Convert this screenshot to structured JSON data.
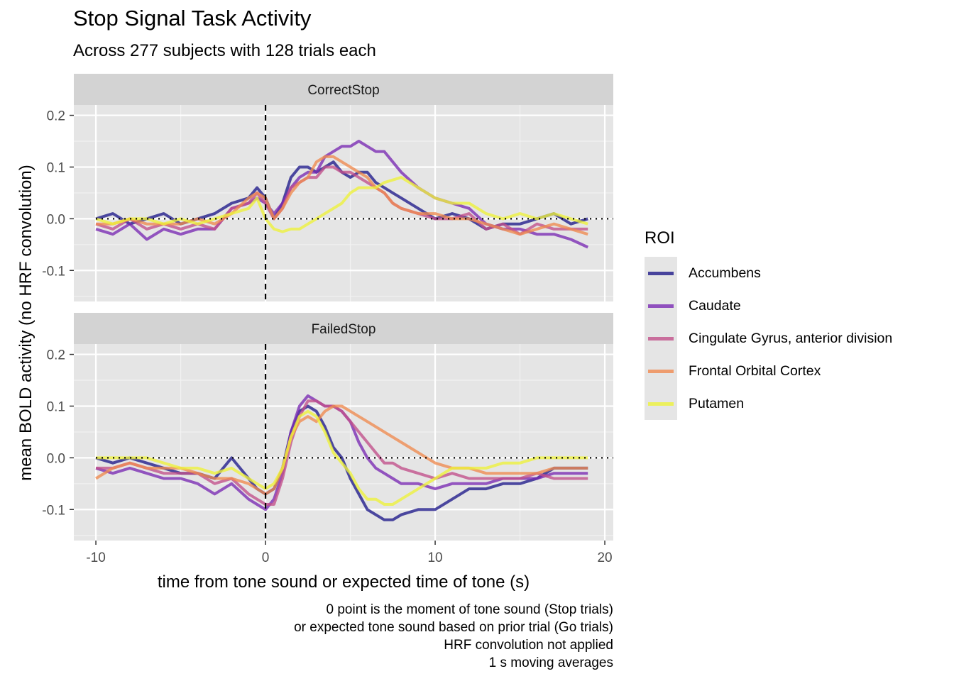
{
  "chart_data": {
    "type": "line",
    "title": "Stop Signal Task Activity",
    "subtitle": "Across 277 subjects with 128 trials each",
    "xlabel": "time from tone sound or expected time of tone (s)",
    "ylabel": "mean BOLD activity (no HRF convolution)",
    "xlim": [
      -11.3,
      20.5
    ],
    "ylim": [
      -0.16,
      0.22
    ],
    "x_ticks": [
      -10,
      0,
      10,
      20
    ],
    "x_tick_labels": [
      "-10",
      "0",
      "10",
      "20"
    ],
    "y_ticks": [
      -0.1,
      0.0,
      0.1,
      0.2
    ],
    "y_tick_labels": [
      "-0.1",
      "0.0",
      "0.1",
      "0.2"
    ],
    "grid": true,
    "reference_lines": {
      "vertical_dashed_x": 0,
      "horizontal_dotted_y": 0
    },
    "legend": {
      "title": "ROI",
      "position": "right"
    },
    "caption": [
      "0 point is the moment of tone sound (Stop trials)",
      "or expected tone sound based on prior trial (Go trials)",
      "HRF convolution not applied",
      "1 s moving averages"
    ],
    "facets": [
      {
        "name": "CorrectStop",
        "series": [
          {
            "name": "Accumbens",
            "color": "#1f1a8a",
            "x": [
              -10,
              -9,
              -8,
              -7,
              -6,
              -5,
              -4,
              -3,
              -2,
              -1,
              -0.5,
              0,
              0.5,
              1,
              1.5,
              2,
              2.5,
              3,
              3.5,
              4,
              4.5,
              5,
              5.5,
              6,
              6.5,
              7,
              7.5,
              8,
              9,
              10,
              11,
              12,
              13,
              14,
              15,
              16,
              17,
              18,
              19
            ],
            "y": [
              0.0,
              0.01,
              -0.01,
              0.0,
              0.01,
              -0.01,
              0.0,
              0.01,
              0.03,
              0.04,
              0.06,
              0.04,
              0.0,
              0.03,
              0.08,
              0.1,
              0.1,
              0.09,
              0.1,
              0.11,
              0.09,
              0.08,
              0.09,
              0.09,
              0.07,
              0.06,
              0.05,
              0.04,
              0.02,
              0.0,
              0.01,
              0.0,
              -0.02,
              -0.01,
              -0.01,
              0.0,
              0.01,
              -0.01,
              0.0
            ]
          },
          {
            "name": "Caudate",
            "color": "#7a2ab4",
            "x": [
              -10,
              -9,
              -8,
              -7,
              -6,
              -5,
              -4,
              -3,
              -2,
              -1,
              -0.5,
              0,
              0.5,
              1,
              1.5,
              2,
              2.5,
              3,
              3.5,
              4,
              4.5,
              5,
              5.5,
              6,
              6.5,
              7,
              7.5,
              8,
              9,
              10,
              11,
              12,
              13,
              14,
              15,
              16,
              17,
              18,
              19
            ],
            "y": [
              -0.02,
              -0.03,
              -0.01,
              -0.04,
              -0.02,
              -0.03,
              -0.02,
              -0.02,
              0.02,
              0.03,
              0.04,
              0.03,
              0.01,
              0.03,
              0.06,
              0.08,
              0.09,
              0.09,
              0.12,
              0.13,
              0.14,
              0.14,
              0.15,
              0.14,
              0.13,
              0.13,
              0.11,
              0.09,
              0.06,
              0.04,
              0.03,
              0.02,
              -0.01,
              -0.02,
              -0.02,
              -0.03,
              -0.03,
              -0.04,
              -0.055
            ]
          },
          {
            "name": "Cingulate Gyrus, anterior division",
            "color": "#c2508a",
            "x": [
              -10,
              -9,
              -8,
              -7,
              -6,
              -5,
              -4,
              -3,
              -2,
              -1,
              -0.5,
              0,
              0.5,
              1,
              1.5,
              2,
              2.5,
              3,
              3.5,
              4,
              4.5,
              5,
              5.5,
              6,
              6.5,
              7,
              7.5,
              8,
              9,
              10,
              11,
              12,
              13,
              14,
              15,
              16,
              17,
              18,
              19
            ],
            "y": [
              -0.01,
              -0.02,
              0.0,
              -0.02,
              -0.01,
              -0.02,
              -0.01,
              -0.02,
              0.02,
              0.03,
              0.05,
              0.03,
              0.0,
              0.02,
              0.06,
              0.07,
              0.08,
              0.08,
              0.1,
              0.1,
              0.09,
              0.09,
              0.08,
              0.07,
              0.06,
              0.05,
              0.03,
              0.02,
              0.01,
              0.0,
              0.0,
              0.01,
              -0.02,
              -0.01,
              -0.03,
              -0.01,
              -0.02,
              -0.02,
              -0.02
            ]
          },
          {
            "name": "Frontal Orbital Cortex",
            "color": "#f08a50",
            "x": [
              -10,
              -9,
              -8,
              -7,
              -6,
              -5,
              -4,
              -3,
              -2,
              -1,
              -0.5,
              0,
              0.5,
              1,
              1.5,
              2,
              2.5,
              3,
              3.5,
              4,
              4.5,
              5,
              5.5,
              6,
              6.5,
              7,
              7.5,
              8,
              9,
              10,
              11,
              12,
              13,
              14,
              15,
              16,
              17,
              18,
              19
            ],
            "y": [
              -0.01,
              -0.01,
              0.0,
              -0.01,
              -0.01,
              -0.01,
              0.0,
              -0.01,
              0.01,
              0.04,
              0.05,
              0.04,
              0.0,
              0.02,
              0.05,
              0.07,
              0.08,
              0.11,
              0.12,
              0.12,
              0.11,
              0.1,
              0.09,
              0.08,
              0.06,
              0.05,
              0.03,
              0.02,
              0.01,
              0.01,
              0.0,
              0.0,
              -0.01,
              -0.02,
              -0.03,
              -0.02,
              -0.01,
              -0.02,
              -0.03
            ]
          },
          {
            "name": "Putamen",
            "color": "#eef23a",
            "x": [
              -10,
              -9,
              -8,
              -7,
              -6,
              -5,
              -4,
              -3,
              -2,
              -1,
              -0.5,
              0,
              0.5,
              1,
              1.5,
              2,
              2.5,
              3,
              3.5,
              4,
              4.5,
              5,
              5.5,
              6,
              6.5,
              7,
              7.5,
              8,
              9,
              10,
              11,
              12,
              13,
              14,
              15,
              16,
              17,
              18,
              19
            ],
            "y": [
              0.0,
              -0.01,
              0.0,
              0.0,
              -0.01,
              0.0,
              -0.01,
              0.0,
              0.01,
              0.02,
              0.04,
              0.0,
              -0.02,
              -0.025,
              -0.02,
              -0.02,
              -0.01,
              0.0,
              0.01,
              0.02,
              0.03,
              0.05,
              0.06,
              0.06,
              0.06,
              0.07,
              0.075,
              0.08,
              0.06,
              0.04,
              0.03,
              0.03,
              0.01,
              0.0,
              0.01,
              0.0,
              0.01,
              0.0,
              -0.01
            ]
          }
        ]
      },
      {
        "name": "FailedStop",
        "series": [
          {
            "name": "Accumbens",
            "color": "#1f1a8a",
            "x": [
              -10,
              -9,
              -8,
              -7,
              -6,
              -5,
              -4,
              -3,
              -2,
              -1,
              -0.5,
              0,
              0.5,
              1,
              1.5,
              2,
              2.5,
              3,
              3.5,
              4,
              4.5,
              5,
              5.5,
              6,
              6.5,
              7,
              7.5,
              8,
              9,
              10,
              11,
              12,
              13,
              14,
              15,
              16,
              17,
              18,
              19
            ],
            "y": [
              0.0,
              -0.01,
              0.0,
              -0.01,
              -0.02,
              -0.03,
              -0.03,
              -0.04,
              0.0,
              -0.04,
              -0.06,
              -0.07,
              -0.06,
              -0.02,
              0.05,
              0.09,
              0.1,
              0.09,
              0.06,
              0.02,
              0.0,
              -0.04,
              -0.07,
              -0.1,
              -0.11,
              -0.12,
              -0.12,
              -0.11,
              -0.1,
              -0.1,
              -0.08,
              -0.06,
              -0.06,
              -0.05,
              -0.05,
              -0.04,
              -0.02,
              -0.02,
              -0.02
            ]
          },
          {
            "name": "Caudate",
            "color": "#7a2ab4",
            "x": [
              -10,
              -9,
              -8,
              -7,
              -6,
              -5,
              -4,
              -3,
              -2,
              -1,
              -0.5,
              0,
              0.5,
              1,
              1.5,
              2,
              2.5,
              3,
              3.5,
              4,
              4.5,
              5,
              5.5,
              6,
              6.5,
              7,
              7.5,
              8,
              9,
              10,
              11,
              12,
              13,
              14,
              15,
              16,
              17,
              18,
              19
            ],
            "y": [
              -0.02,
              -0.03,
              -0.02,
              -0.03,
              -0.04,
              -0.04,
              -0.05,
              -0.07,
              -0.05,
              -0.08,
              -0.09,
              -0.1,
              -0.08,
              -0.03,
              0.05,
              0.1,
              0.12,
              0.11,
              0.1,
              0.1,
              0.09,
              0.07,
              0.03,
              0.0,
              -0.02,
              -0.03,
              -0.04,
              -0.05,
              -0.05,
              -0.06,
              -0.05,
              -0.05,
              -0.05,
              -0.04,
              -0.04,
              -0.04,
              -0.03,
              -0.03,
              -0.03
            ]
          },
          {
            "name": "Cingulate Gyrus, anterior division",
            "color": "#c2508a",
            "x": [
              -10,
              -9,
              -8,
              -7,
              -6,
              -5,
              -4,
              -3,
              -2,
              -1,
              -0.5,
              0,
              0.5,
              1,
              1.5,
              2,
              2.5,
              3,
              3.5,
              4,
              4.5,
              5,
              5.5,
              6,
              6.5,
              7,
              7.5,
              8,
              9,
              10,
              11,
              12,
              13,
              14,
              15,
              16,
              17,
              18,
              19
            ],
            "y": [
              -0.02,
              -0.02,
              -0.01,
              -0.02,
              -0.03,
              -0.03,
              -0.03,
              -0.05,
              -0.04,
              -0.07,
              -0.08,
              -0.09,
              -0.09,
              -0.04,
              0.03,
              0.08,
              0.11,
              0.11,
              0.1,
              0.1,
              0.09,
              0.07,
              0.05,
              0.03,
              0.01,
              -0.01,
              -0.01,
              -0.02,
              -0.03,
              -0.04,
              -0.03,
              -0.04,
              -0.04,
              -0.04,
              -0.04,
              -0.03,
              -0.04,
              -0.04,
              -0.04
            ]
          },
          {
            "name": "Frontal Orbital Cortex",
            "color": "#f08a50",
            "x": [
              -10,
              -9,
              -8,
              -7,
              -6,
              -5,
              -4,
              -3,
              -2,
              -1,
              -0.5,
              0,
              0.5,
              1,
              1.5,
              2,
              2.5,
              3,
              3.5,
              4,
              4.5,
              5,
              5.5,
              6,
              6.5,
              7,
              7.5,
              8,
              9,
              10,
              11,
              12,
              13,
              14,
              15,
              16,
              17,
              18,
              19
            ],
            "y": [
              -0.04,
              -0.02,
              -0.01,
              -0.02,
              -0.02,
              -0.02,
              -0.03,
              -0.04,
              -0.04,
              -0.05,
              -0.06,
              -0.07,
              -0.06,
              -0.02,
              0.04,
              0.07,
              0.08,
              0.07,
              0.09,
              0.1,
              0.1,
              0.09,
              0.08,
              0.07,
              0.06,
              0.05,
              0.04,
              0.03,
              0.01,
              -0.01,
              -0.02,
              -0.02,
              -0.03,
              -0.03,
              -0.03,
              -0.03,
              -0.02,
              -0.02,
              -0.02
            ]
          },
          {
            "name": "Putamen",
            "color": "#eef23a",
            "x": [
              -10,
              -9,
              -8,
              -7,
              -6,
              -5,
              -4,
              -3,
              -2,
              -1,
              -0.5,
              0,
              0.5,
              1,
              1.5,
              2,
              2.5,
              3,
              3.5,
              4,
              4.5,
              5,
              5.5,
              6,
              6.5,
              7,
              7.5,
              8,
              9,
              10,
              11,
              12,
              13,
              14,
              15,
              16,
              17,
              18,
              19
            ],
            "y": [
              0.0,
              0.0,
              0.0,
              0.0,
              -0.01,
              -0.02,
              -0.02,
              -0.03,
              -0.02,
              -0.04,
              -0.05,
              -0.06,
              -0.05,
              -0.02,
              0.04,
              0.08,
              0.09,
              0.08,
              0.05,
              0.01,
              -0.01,
              -0.03,
              -0.06,
              -0.08,
              -0.08,
              -0.09,
              -0.09,
              -0.08,
              -0.06,
              -0.04,
              -0.02,
              -0.02,
              -0.02,
              -0.01,
              -0.01,
              0.0,
              0.0,
              0.0,
              0.0
            ]
          }
        ]
      }
    ]
  }
}
